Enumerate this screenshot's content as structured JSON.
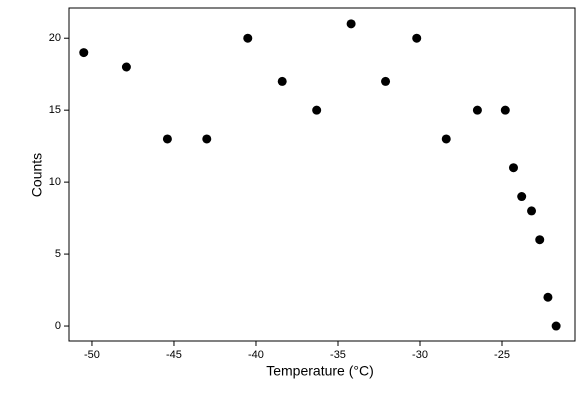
{
  "chart_data": {
    "type": "scatter",
    "xlabel": "Temperature (°C)",
    "ylabel": "Counts",
    "series": [
      {
        "color": "#000000",
        "x": [
          -50.5,
          -47.9,
          -45.4,
          -43.0,
          -40.5,
          -38.4,
          -36.3,
          -34.2,
          -32.1,
          -30.2,
          -28.4,
          -26.5,
          -24.8,
          -24.3,
          -23.8,
          -23.2,
          -22.7,
          -22.2,
          -21.7
        ],
        "values": [
          19,
          18,
          13,
          13,
          20,
          17,
          15,
          21,
          17,
          20,
          13,
          15,
          15,
          11,
          9,
          8,
          6,
          2,
          0
        ]
      }
    ],
    "xlim": [
      -51.4,
      -20.55
    ],
    "xticks": [
      -50,
      -45,
      -40,
      -35,
      -30,
      -25
    ],
    "ylim": [
      -1.04,
      22.1
    ],
    "yticks": [
      0,
      5,
      10,
      15,
      20
    ]
  }
}
